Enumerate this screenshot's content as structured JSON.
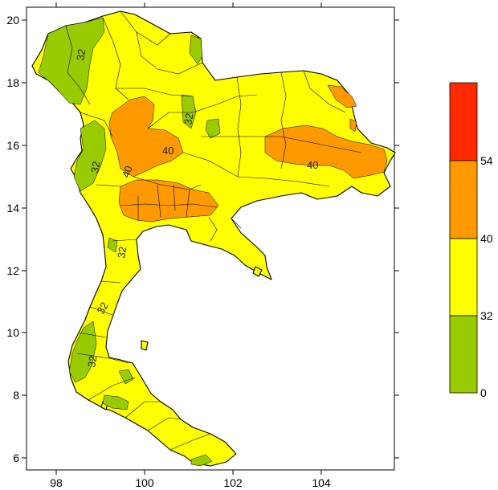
{
  "map": {
    "x_ticks": [
      "98",
      "100",
      "102",
      "104"
    ],
    "y_ticks": [
      "20",
      "18",
      "16",
      "14",
      "12",
      "10",
      "8",
      "6"
    ],
    "contour_labels": [
      "32",
      "40",
      "40",
      "32",
      "32",
      "32",
      "32",
      "40",
      "32"
    ]
  },
  "legend": {
    "labels": [
      "54",
      "40",
      "32",
      "0"
    ],
    "colors": [
      "#ff2a00",
      "#ff9900",
      "#ffff00",
      "#99cc00"
    ]
  }
}
